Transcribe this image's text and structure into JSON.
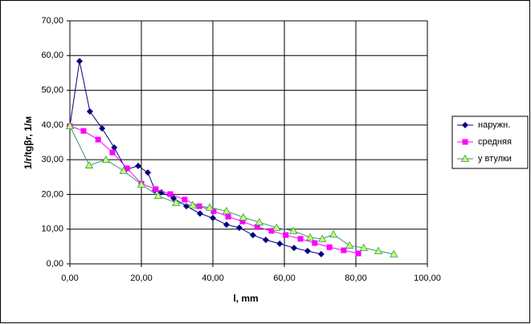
{
  "chart_data": {
    "type": "line",
    "x_label": "l, mm",
    "y_label": "1/r/tgβr, 1/м",
    "xlim": [
      0,
      100
    ],
    "xticks": [
      {
        "value": 0,
        "label": "0,00"
      },
      {
        "value": 20,
        "label": "20,00"
      },
      {
        "value": 40,
        "label": "40,00"
      },
      {
        "value": 60,
        "label": "60,00"
      },
      {
        "value": 80,
        "label": "80,00"
      },
      {
        "value": 100,
        "label": "100,00"
      }
    ],
    "ylim": [
      0,
      70
    ],
    "yticks": [
      {
        "value": 0,
        "label": "0,00"
      },
      {
        "value": 10,
        "label": "10,00"
      },
      {
        "value": 20,
        "label": "20,00"
      },
      {
        "value": 30,
        "label": "30,00"
      },
      {
        "value": 40,
        "label": "40,00"
      },
      {
        "value": 50,
        "label": "50,00"
      },
      {
        "value": 60,
        "label": "60,00"
      },
      {
        "value": 70,
        "label": "70,00"
      }
    ],
    "grid": true,
    "legend": "right",
    "series": [
      {
        "name": "наружн.",
        "color": "#000080",
        "marker": "diamond",
        "x": [
          0,
          2.7,
          5.6,
          9,
          12.4,
          15.7,
          19.1,
          21.8,
          23.8,
          25.6,
          29,
          32.6,
          36.4,
          40,
          43.8,
          47.4,
          51.2,
          54.8,
          58.7,
          62.7,
          66.5,
          70.3
        ],
        "values": [
          39.7,
          58.4,
          43.9,
          39,
          33.5,
          27.2,
          28.2,
          26.3,
          21.2,
          20.6,
          18.9,
          16.6,
          14.5,
          13.2,
          11.3,
          10.4,
          8.3,
          6.9,
          5.8,
          4.6,
          3.7,
          2.8
        ]
      },
      {
        "name": "средняя",
        "color": "#ff00ff",
        "marker": "square",
        "x": [
          0,
          3.8,
          7.9,
          11.9,
          16,
          20,
          24,
          28.1,
          32.1,
          36.2,
          40.2,
          44.3,
          48.3,
          52.4,
          56.4,
          60.4,
          64.5,
          68.5,
          72.6,
          76.6,
          80.7
        ],
        "values": [
          39.7,
          38.3,
          35.8,
          32.1,
          27.5,
          23.1,
          21.5,
          20.1,
          18.5,
          16.6,
          15.2,
          13.6,
          12.2,
          10.6,
          9.5,
          8.3,
          7.2,
          6,
          4.8,
          3.9,
          3
        ]
      },
      {
        "name": "у втулки",
        "color": "#339966",
        "marker": "triangle",
        "x": [
          0,
          5.4,
          10.1,
          15,
          20,
          24.7,
          29.7,
          34.4,
          39.1,
          43.8,
          48.5,
          53,
          57.8,
          62.5,
          67.2,
          70.6,
          73.7,
          78.2,
          82.2,
          86.3,
          90.6
        ],
        "values": [
          39.7,
          28.4,
          30,
          26.8,
          22.9,
          19.6,
          17.6,
          16.9,
          16.2,
          15.2,
          13.4,
          12,
          10.4,
          9.5,
          7.6,
          7.2,
          8.5,
          5.3,
          4.6,
          3.7,
          2.8
        ]
      }
    ]
  }
}
